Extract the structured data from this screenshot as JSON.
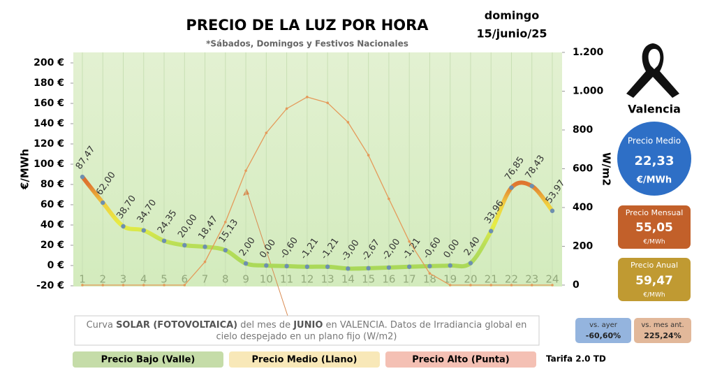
{
  "chart_data": {
    "type": "line",
    "title": "PRECIO DE LA LUZ POR HORA",
    "subtitle": "*Sábados, Domingos y Festivos Nacionales",
    "date": [
      "domingo",
      "15/junio/25"
    ],
    "ylabel": "€/MWh",
    "y2label": "W/m2",
    "categories": [
      "1",
      "2",
      "3",
      "4",
      "5",
      "6",
      "7",
      "8",
      "9",
      "10",
      "11",
      "12",
      "13",
      "14",
      "15",
      "16",
      "17",
      "18",
      "19",
      "20",
      "21",
      "22",
      "23",
      "24"
    ],
    "series": [
      {
        "color": "gradient",
        "values": [
          87.47,
          62.0,
          38.7,
          34.7,
          24.35,
          20.0,
          18.47,
          15.13,
          2.0,
          0.0,
          -0.6,
          -1.21,
          -1.21,
          -3.0,
          -2.67,
          -2.0,
          -1.21,
          -0.6,
          0.0,
          2.4,
          33.96,
          76.85,
          78.43,
          53.97
        ],
        "value_labels": [
          "87,47",
          "62,00",
          "38,70",
          "34,70",
          "24,35",
          "20,00",
          "18,47",
          "15,13",
          "2,00",
          "0,00",
          "-0,60",
          "-1,21",
          "-1,21",
          "-3,00",
          "-2,67",
          "-2,00",
          "-1,21",
          "-0,60",
          "0,00",
          "2,40",
          "33,96",
          "76,85",
          "78,43",
          "53,97"
        ]
      },
      {
        "color": "#e49a5a",
        "axis": "y2",
        "values": [
          0,
          0,
          0,
          0,
          0,
          0,
          120,
          325,
          590,
          785,
          910,
          970,
          940,
          840,
          670,
          445,
          225,
          60,
          0,
          0,
          0,
          0,
          0,
          0
        ]
      }
    ],
    "ylim": [
      -20,
      200
    ],
    "yticks": [
      {
        "value": -20,
        "label": "-20 €"
      },
      {
        "value": 0,
        "label": "0 €"
      },
      {
        "value": 20,
        "label": "20 €"
      },
      {
        "value": 40,
        "label": "40 €"
      },
      {
        "value": 60,
        "label": "60 €"
      },
      {
        "value": 80,
        "label": "80 €"
      },
      {
        "value": 100,
        "label": "100 €"
      },
      {
        "value": 120,
        "label": "120 €"
      },
      {
        "value": 140,
        "label": "140 €"
      },
      {
        "value": 160,
        "label": "160 €"
      },
      {
        "value": 180,
        "label": "180 €"
      },
      {
        "value": 200,
        "label": "200 €"
      }
    ],
    "y2lim": [
      0,
      1200
    ],
    "y2ticks": [
      0,
      200,
      400,
      600,
      800,
      {
        "value": 1000,
        "label": "1.000"
      },
      {
        "value": 1200,
        "label": "1.200"
      }
    ],
    "annotation": [
      "Curva ",
      "SOLAR (FOTOVOLTAICA)",
      " del mes de ",
      "JUNIO",
      " en VALENCIA. Datos de Irradiancia global en",
      "cielo despejado en un plano fijo (W/m2)"
    ],
    "legend_bands": [
      {
        "label": "Precio Bajo (Valle)",
        "color": "#c5dca8"
      },
      {
        "label": "Precio Medio (Llano)",
        "color": "#f8e8b8"
      },
      {
        "label": "Precio Alto (Punta)",
        "color": "#f4c0b4"
      }
    ],
    "tariff": "Tarifa 2.0 TD"
  },
  "panel": {
    "city": "Valencia",
    "average": {
      "label": "Precio Medio",
      "value": "22,33",
      "unit": "€/MWh"
    },
    "monthly": {
      "label": "Precio Mensual",
      "value": "55,05",
      "unit": "€/MWh"
    },
    "yearly": {
      "label": "Precio Anual",
      "value": "59,47",
      "unit": "€/MWh"
    },
    "vs_yesterday": {
      "label": "vs. ayer",
      "value": "-60,60%"
    },
    "vs_last_month": {
      "label": "vs. mes ant.",
      "value": "225,24%"
    }
  }
}
